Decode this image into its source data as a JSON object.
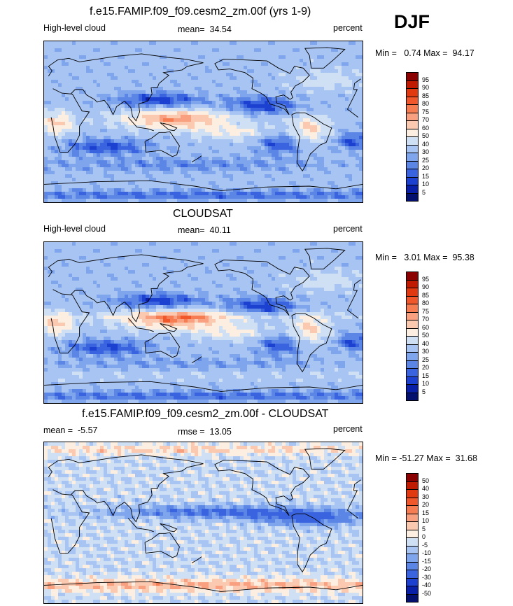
{
  "season": "DJF",
  "panels": [
    {
      "title": "f.e15.FAMIP.f09_f09.cesm2_zm.00f (yrs 1-9)",
      "left_label": "High-level cloud",
      "center_label": "mean=  34.54",
      "right_label": "percent",
      "minmax": "Min =   0.74 Max =  94.17",
      "scale": "abs",
      "colorbar": {
        "labels": [
          "95",
          "90",
          "85",
          "80",
          "75",
          "70",
          "60",
          "50",
          "40",
          "30",
          "25",
          "20",
          "15",
          "10",
          "5"
        ],
        "colors": [
          "#8b0000",
          "#c01a00",
          "#e23a10",
          "#f0572a",
          "#f67d52",
          "#f8a080",
          "#fbc8b0",
          "#fdeee2",
          "#cfe0f5",
          "#a8c4f2",
          "#7fa5ec",
          "#5b86e6",
          "#3a64df",
          "#1c40cf",
          "#0a1fa8",
          "#03106e"
        ]
      }
    },
    {
      "title": "CLOUDSAT",
      "left_label": "High-level cloud",
      "center_label": "mean=  40.11",
      "right_label": "percent",
      "minmax": "Min =   3.01 Max =  95.38",
      "scale": "abs",
      "colorbar": {
        "labels": [
          "95",
          "90",
          "85",
          "80",
          "75",
          "70",
          "60",
          "50",
          "40",
          "30",
          "25",
          "20",
          "15",
          "10",
          "5"
        ],
        "colors": [
          "#8b0000",
          "#c01a00",
          "#e23a10",
          "#f0572a",
          "#f67d52",
          "#f8a080",
          "#fbc8b0",
          "#fdeee2",
          "#cfe0f5",
          "#a8c4f2",
          "#7fa5ec",
          "#5b86e6",
          "#3a64df",
          "#1c40cf",
          "#0a1fa8",
          "#03106e"
        ]
      }
    },
    {
      "title": "f.e15.FAMIP.f09_f09.cesm2_zm.00f - CLOUDSAT",
      "left_label": "mean =  -5.57",
      "center_label": "rmse =  13.05",
      "right_label": "percent",
      "minmax": "Min = -51.27 Max =  31.68",
      "scale": "diff",
      "colorbar": {
        "labels": [
          "50",
          "40",
          "30",
          "20",
          "15",
          "10",
          "5",
          "0",
          "-5",
          "-10",
          "-15",
          "-20",
          "-30",
          "-40",
          "-50"
        ],
        "colors": [
          "#8b0000",
          "#c01a00",
          "#e23a10",
          "#f0572a",
          "#f67d52",
          "#f8a080",
          "#fbc8b0",
          "#fdeee2",
          "#cfe0f5",
          "#a8c4f2",
          "#7fa5ec",
          "#5b86e6",
          "#3a64df",
          "#1c40cf",
          "#0a1fa8",
          "#03106e"
        ]
      }
    }
  ]
}
